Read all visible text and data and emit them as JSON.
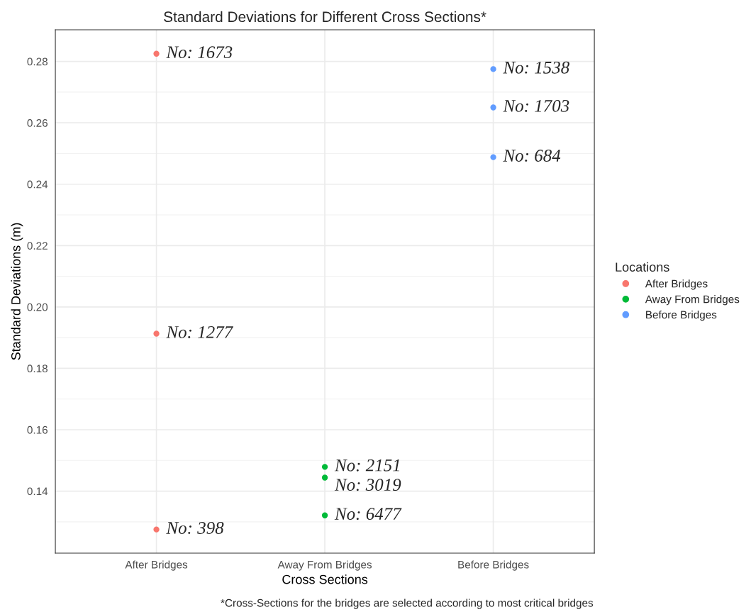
{
  "chart_data": {
    "type": "scatter",
    "title": "Standard Deviations for Different Cross Sections*",
    "xlabel": "Cross Sections",
    "ylabel": "Standard Deviations (m)",
    "legend_title": "Locations",
    "categories": [
      "After Bridges",
      "Away From Bridges",
      "Before Bridges"
    ],
    "series": [
      {
        "name": "After Bridges",
        "color": "#f8766d",
        "x": [
          "After Bridges",
          "After Bridges",
          "After Bridges"
        ],
        "values": [
          0.2825,
          0.1913,
          0.1275
        ]
      },
      {
        "name": "Away From Bridges",
        "color": "#00ba38",
        "x": [
          "Away From Bridges",
          "Away From Bridges",
          "Away From Bridges"
        ],
        "values": [
          0.1479,
          0.1444,
          0.1321
        ]
      },
      {
        "name": "Before Bridges",
        "color": "#619cff",
        "x": [
          "Before Bridges",
          "Before Bridges",
          "Before Bridges"
        ],
        "values": [
          0.2775,
          0.265,
          0.2488
        ]
      }
    ],
    "annotations": [
      {
        "text": "No: 1673",
        "x": "After Bridges",
        "y": 0.2825
      },
      {
        "text": "No: 1277",
        "x": "After Bridges",
        "y": 0.1913
      },
      {
        "text": "No: 398",
        "x": "After Bridges",
        "y": 0.1275
      },
      {
        "text": "No: 2151",
        "x": "Away From Bridges",
        "y": 0.1479
      },
      {
        "text": "No: 3019",
        "x": "Away From Bridges",
        "y": 0.1444
      },
      {
        "text": "No: 6477",
        "x": "Away From Bridges",
        "y": 0.1321
      },
      {
        "text": "No: 1538",
        "x": "Before Bridges",
        "y": 0.2775
      },
      {
        "text": "No: 1703",
        "x": "Before Bridges",
        "y": 0.265
      },
      {
        "text": "No: 684",
        "x": "Before Bridges",
        "y": 0.2488
      },
      "*Cross-Sections for the bridges are selected according to most critical bridges"
    ],
    "ylim": [
      0.1198,
      0.2903
    ],
    "yticks": [
      {
        "value": 0.14,
        "label": "0.14"
      },
      {
        "value": 0.16,
        "label": "0.16"
      },
      {
        "value": 0.18,
        "label": "0.18"
      },
      {
        "value": 0.2,
        "label": "0.20"
      },
      {
        "value": 0.22,
        "label": "0.22"
      },
      {
        "value": 0.24,
        "label": "0.24"
      },
      {
        "value": 0.26,
        "label": "0.26"
      },
      {
        "value": 0.28,
        "label": "0.28"
      }
    ],
    "grid": true,
    "legend": "right",
    "marker": "circle"
  }
}
